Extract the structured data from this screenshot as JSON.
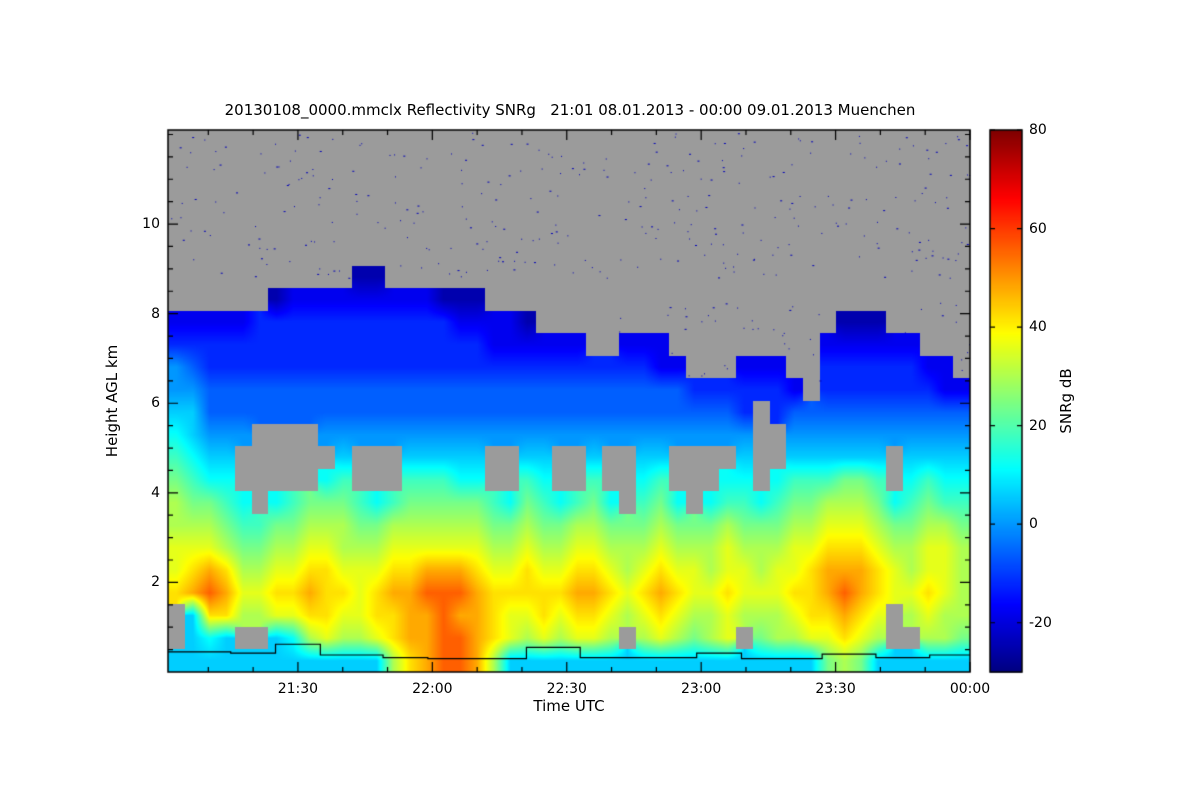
{
  "figure": {
    "background": "#ffffff"
  },
  "chart_data": {
    "type": "heatmap",
    "title": "20130108_0000.mmclx Reflectivity SNRg   21:01 08.01.2013 - 00:00 09.01.2013 Muenchen",
    "xlabel": "Time UTC",
    "ylabel": "Height AGL km",
    "x_start_label": "21:01",
    "x_end_label": "00:00",
    "x_end_min": 179,
    "x_ticks": [
      {
        "label": "21:30",
        "min": 29
      },
      {
        "label": "22:00",
        "min": 59
      },
      {
        "label": "22:30",
        "min": 89
      },
      {
        "label": "23:00",
        "min": 119
      },
      {
        "label": "23:30",
        "min": 149
      },
      {
        "label": "00:00",
        "min": 179
      }
    ],
    "x_minor_step_min": 10,
    "x_minor_phase_min": 9,
    "ylim": [
      0,
      12.1
    ],
    "y_ticks": [
      2,
      4,
      6,
      8,
      10
    ],
    "y_minor_step": 0.5,
    "grid": "off",
    "legend": "colorbar-right",
    "colorbar": {
      "label": "SNRg dB",
      "min": -30,
      "max": 80,
      "ticks": [
        80,
        60,
        40,
        20,
        0,
        -20
      ]
    },
    "no_data_color": "#9b9b9b",
    "frame_color": "#000000",
    "value_scale": {
      ".": null,
      "0": -25,
      "1": -18,
      "2": -12,
      "3": -6,
      "4": 0,
      "5": 6,
      "6": 12,
      "7": 18,
      "8": 24,
      "9": 30,
      "a": 36,
      "b": 42,
      "c": 48,
      "d": 56
    },
    "n_cols": 48,
    "grid_rows_top_to_bottom": [
      "................................................",
      "................................................",
      "................................................",
      "................................................",
      "................................................",
      "................................................",
      "...........00...................................",
      "......0111111111000.............................",
      "1111122222222222211110..................000.....",
      "2222222222222222222111111..111.........111111...",
      "4322222222222222222222222222211...111..22222211.",
      "44333333333333333333333333333332222221.222222211",
      "55333333333333333333333333333333332.233333333333",
      "65444....44444444444444444444444444..44444444444",
      "7655......5...55555..55..5..55....5..555555.5555",
      "8766.....67...77766..76..7..67...66.6777887.6766",
      "98876.678887678888876876786.786.6776788999867877",
      "999877889998899999988988998889888988899aaa988998",
      "aaa98899aa999aaaaaa99a99aa999a999a999aabbba99aa9",
      "abcb99aabbaaabbcccbaabaabba9abaa9aa9aabcccba9aa9",
      "bcdcaabbcbbabccdddcbbbbbccbabcbaabaaabbcdcbaaba9",
      ".5bb99aabbaabbccdccbaababba9aba99a999abbcba.9a99",
      ".565..569a99abccddcba9a9aa9.9a989a.899aaba9..998",
      "55555555555559bcddc95555555555555555555898555555"
    ],
    "noise_specks": [
      {
        "seed": 7,
        "count": 320,
        "x": [
          0,
          179
        ],
        "y": [
          8.8,
          12.05
        ],
        "value": -24
      },
      {
        "seed": 13,
        "count": 110,
        "x": [
          100,
          179
        ],
        "y": [
          5.2,
          8.3
        ],
        "value": -24
      }
    ],
    "base_line": {
      "color": "#000000",
      "points": [
        [
          0,
          0.45
        ],
        [
          14,
          0.45
        ],
        [
          14,
          0.42
        ],
        [
          24,
          0.42
        ],
        [
          24,
          0.62
        ],
        [
          34,
          0.62
        ],
        [
          34,
          0.38
        ],
        [
          48,
          0.38
        ],
        [
          48,
          0.32
        ],
        [
          58,
          0.32
        ],
        [
          58,
          0.3
        ],
        [
          80,
          0.3
        ],
        [
          80,
          0.55
        ],
        [
          92,
          0.55
        ],
        [
          92,
          0.32
        ],
        [
          118,
          0.32
        ],
        [
          118,
          0.42
        ],
        [
          128,
          0.42
        ],
        [
          128,
          0.3
        ],
        [
          146,
          0.3
        ],
        [
          146,
          0.4
        ],
        [
          158,
          0.4
        ],
        [
          158,
          0.32
        ],
        [
          170,
          0.32
        ],
        [
          170,
          0.38
        ],
        [
          179,
          0.38
        ]
      ]
    }
  }
}
